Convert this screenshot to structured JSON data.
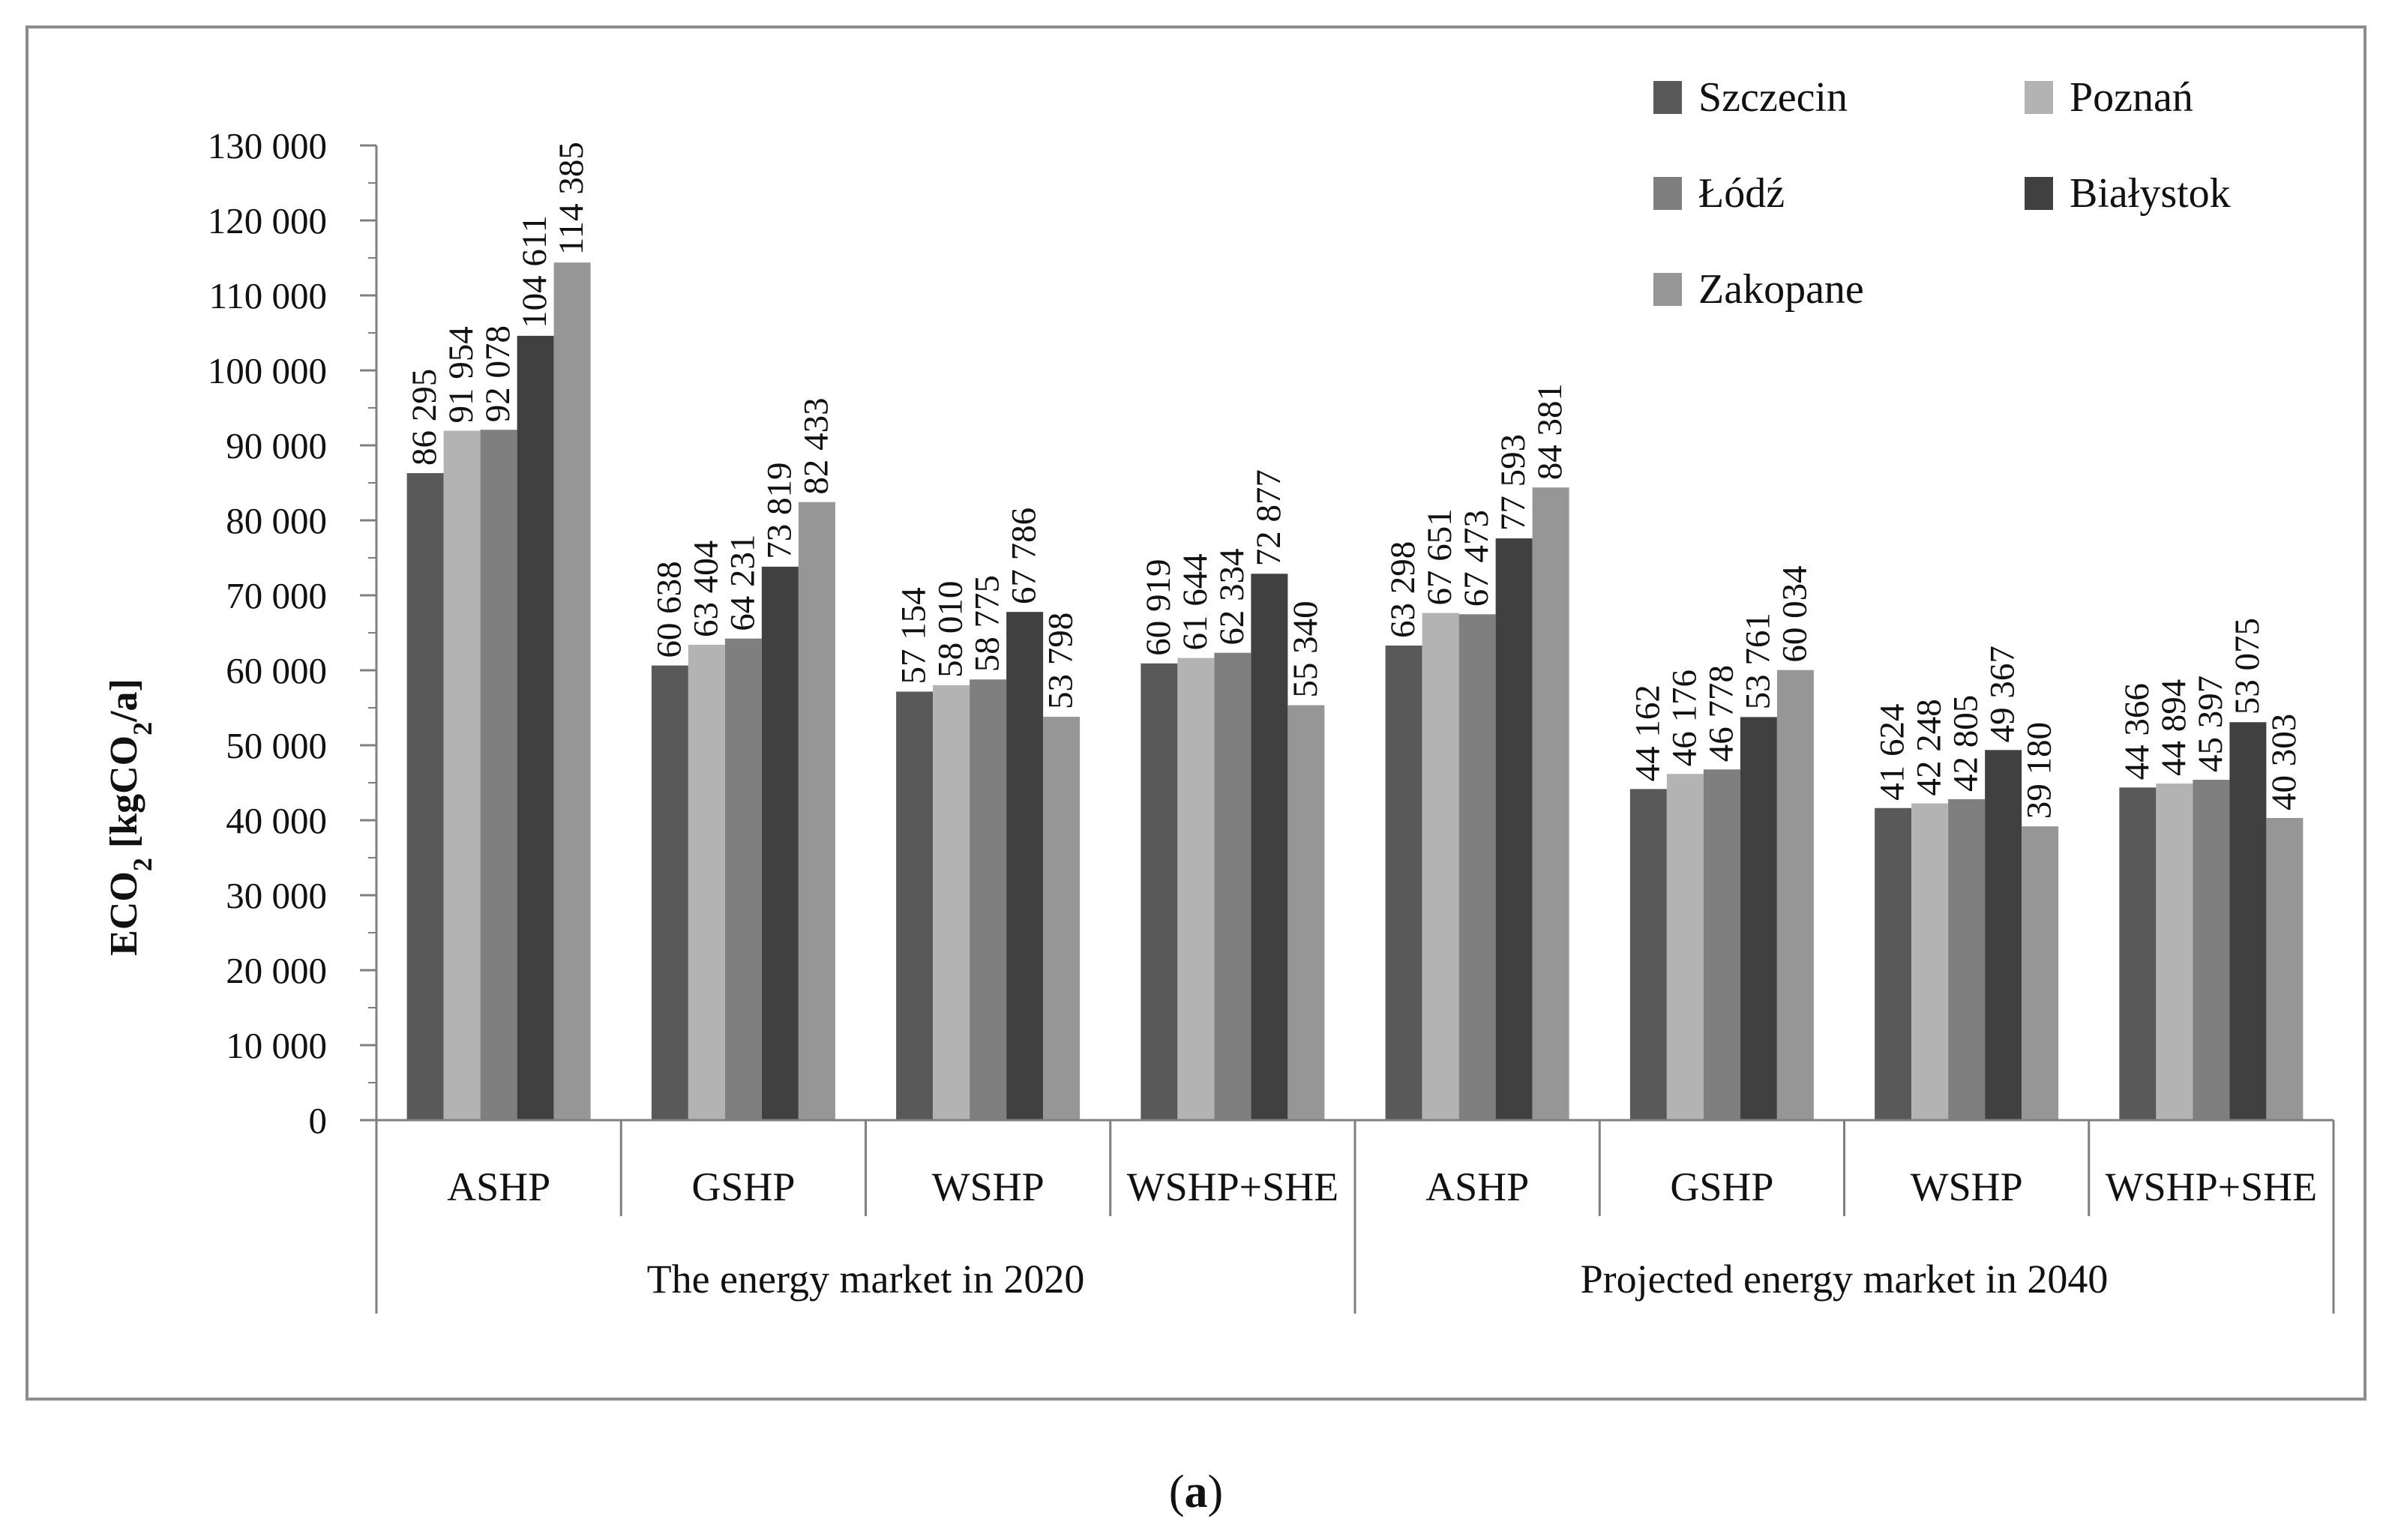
{
  "chart_data": {
    "type": "bar",
    "ylabel": "ECO₂ [kgCO₂/a]",
    "ylabel_main": "ECO",
    "ylabel_sub1": "2",
    "ylabel_mid": " [kgCO",
    "ylabel_sub2": "2",
    "ylabel_end": "/a]",
    "ylim": [
      0,
      130000
    ],
    "yticks": [
      0,
      10000,
      20000,
      30000,
      40000,
      50000,
      60000,
      70000,
      80000,
      90000,
      100000,
      110000,
      120000,
      130000
    ],
    "ytick_labels": [
      "0",
      "10 000",
      "20 000",
      "30 000",
      "40 000",
      "50 000",
      "60 000",
      "70 000",
      "80 000",
      "90 000",
      "100 000",
      "110 000",
      "120 000",
      "130 000"
    ],
    "categories": [
      "ASHP",
      "GSHP",
      "WSHP",
      "WSHP+SHE",
      "ASHP",
      "GSHP",
      "WSHP",
      "WSHP+SHE"
    ],
    "groups": [
      {
        "label": "The energy market in 2020",
        "span": [
          0,
          3
        ]
      },
      {
        "label": "Projected energy market in 2040",
        "span": [
          4,
          7
        ]
      }
    ],
    "series": [
      {
        "name": "Szczecin",
        "color": "#595959",
        "values": [
          86295,
          60638,
          57154,
          60919,
          63298,
          44162,
          41624,
          44366
        ],
        "labels": [
          "86 295",
          "60 638",
          "57 154",
          "60 919",
          "63 298",
          "44 162",
          "41 624",
          "44 366"
        ]
      },
      {
        "name": "Poznań",
        "color": "#b3b3b3",
        "values": [
          91954,
          63404,
          58010,
          61644,
          67651,
          46176,
          42248,
          44894
        ],
        "labels": [
          "91 954",
          "63 404",
          "58 010",
          "61 644",
          "67 651",
          "46 176",
          "42 248",
          "44 894"
        ]
      },
      {
        "name": "Łódź",
        "color": "#7f7f7f",
        "values": [
          92078,
          64231,
          58775,
          62334,
          67473,
          46778,
          42805,
          45397
        ],
        "labels": [
          "92 078",
          "64 231",
          "58 775",
          "62 334",
          "67 473",
          "46 778",
          "42 805",
          "45 397"
        ]
      },
      {
        "name": "Białystok",
        "color": "#404040",
        "values": [
          104611,
          73819,
          67786,
          72877,
          77593,
          53761,
          49367,
          53075
        ],
        "labels": [
          "104 611",
          "73 819",
          "67 786",
          "72 877",
          "77 593",
          "53 761",
          "49 367",
          "53 075"
        ]
      },
      {
        "name": "Zakopane",
        "color": "#969696",
        "values": [
          114385,
          82433,
          53798,
          55340,
          84381,
          60034,
          39180,
          40303
        ],
        "labels": [
          "114 385",
          "82 433",
          "53 798",
          "55 340",
          "84 381",
          "60 034",
          "39 180",
          "40 303"
        ]
      }
    ],
    "legend_position": "top-right",
    "grid": false
  },
  "caption": {
    "open": "(",
    "letter": "a",
    "close": ")"
  }
}
